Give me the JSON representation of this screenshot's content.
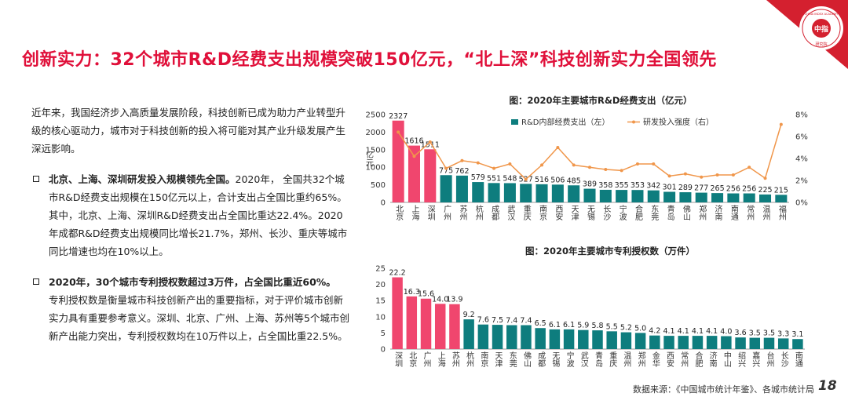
{
  "title": "创新实力：32个城市R&D经费支出规模突破150亿元，“北上深”科技创新实力全国领先",
  "logo": {
    "text_ring": "CHINA INDEX ACADEMY",
    "center": "中指",
    "bottom": "研究院",
    "color": "#d4202f"
  },
  "intro": "近年来，我国经济步入高质量发展阶段，科技创新已成为助力产业转型升级的核心驱动力，城市对于科技创新的投入将可能对其产业升级发展产生深远影响。",
  "bullet1": {
    "lead": "北京、上海、深圳研发投入规模领先全国。",
    "body": "2020年， 全国共32个城市R&D经费支出规模在150亿元以上，合计支出占全国比重约65%。其中，北京、上海、深圳R&D经费支出占全国比重达22.4%。2020年成都R&D经费支出规模同比增长21.7%，郑州、长沙、重庆等城市同比增速也均在10%以上。"
  },
  "bullet2": {
    "lead": "2020年，30个城市专利授权数超过3万件，占全国比重近60%。",
    "body": "专利授权数是衡量城市科技创新产出的重要指标，对于评价城市创新实力具有重要参考意义。深圳、北京、广州、上海、苏州等5个城市创新产出能力突出，专利授权数均在10万件以上，占全国比重22.5%。"
  },
  "footer": {
    "source": "数据来源：《中国城市统计年鉴》、各城市统计局",
    "page": "18"
  },
  "colors": {
    "highlight": "#f0466e",
    "normal": "#0e7d7e",
    "line": "#f0964a"
  },
  "chart_data": [
    {
      "type": "bar",
      "title": "图：2020年主要城市R&D经费支出（亿元）",
      "ylabel": "亿元",
      "ylim": [
        0,
        2500
      ],
      "yticks": [
        "0",
        "500",
        "1000",
        "1500",
        "2000",
        "2500"
      ],
      "y2lim": [
        0,
        8
      ],
      "y2ticks": [
        "0%",
        "2%",
        "4%",
        "6%",
        "8%"
      ],
      "legend": [
        "R&D内部经费支出（左）",
        "研发投入强度（右）"
      ],
      "legend_position": "top",
      "highlight_count": 3,
      "categories": [
        "北京",
        "上海",
        "深圳",
        "广州",
        "苏州",
        "杭州",
        "成都",
        "武汉",
        "重庆",
        "南京",
        "西安",
        "天津",
        "无锡",
        "长沙",
        "宁波",
        "合肥",
        "东莞",
        "青岛",
        "佛山",
        "郑州",
        "济南",
        "南通",
        "常州",
        "温州",
        "福州"
      ],
      "values": [
        2327,
        1616,
        1511,
        775,
        762,
        579,
        551,
        548,
        527,
        516,
        506,
        485,
        389,
        358,
        355,
        353,
        342,
        301,
        289,
        277,
        265,
        256,
        256,
        225,
        215
      ],
      "labels": [
        "2327",
        "1616",
        "1511",
        "775",
        "762",
        "579",
        "551",
        "548",
        "527",
        "516",
        "506",
        "485",
        "389",
        "358",
        "355",
        "353",
        "342",
        "301",
        "289",
        "277",
        "265",
        "256",
        "256",
        "225",
        "215"
      ],
      "intensity": [
        6.4,
        4.2,
        5.5,
        3.1,
        3.8,
        3.6,
        3.1,
        3.5,
        2.1,
        3.4,
        5.0,
        3.4,
        3.2,
        3.0,
        2.9,
        3.5,
        3.5,
        2.4,
        2.6,
        2.3,
        2.5,
        2.5,
        3.2,
        2.2,
        7.1
      ]
    },
    {
      "type": "bar",
      "title": "图：2020年主要城市专利授权数（万件）",
      "ylim": [
        0,
        25
      ],
      "yticks": [
        "0",
        "5",
        "10",
        "15",
        "20",
        "25"
      ],
      "highlight_count": 5,
      "categories": [
        "深圳",
        "北京",
        "广州",
        "上海",
        "苏州",
        "杭州",
        "南京",
        "天津",
        "东莞",
        "佛山",
        "成都",
        "无锡",
        "宁波",
        "武汉",
        "青岛",
        "重庆",
        "温州",
        "郑州",
        "金华",
        "西安",
        "常州",
        "合肥",
        "济南",
        "中山",
        "绍兴",
        "嘉兴",
        "台州",
        "长沙",
        "南通"
      ],
      "values": [
        22.2,
        16.3,
        15.6,
        14.0,
        13.9,
        9.2,
        7.6,
        7.5,
        7.4,
        7.4,
        6.5,
        6.1,
        6.1,
        5.9,
        5.8,
        5.5,
        5.2,
        5.0,
        4.2,
        4.1,
        4.1,
        4.1,
        4.1,
        4.0,
        3.6,
        3.5,
        3.5,
        3.3,
        3.1
      ],
      "labels": [
        "22.2",
        "16.3",
        "15.6",
        "14.0",
        "13.9",
        "9.2",
        "7.6",
        "7.5",
        "7.4",
        "7.4",
        "6.5",
        "6.1",
        "6.1",
        "5.9",
        "5.8",
        "5.5",
        "5.2",
        "5.0",
        "4.2",
        "4.1",
        "4.1",
        "4.1",
        "4.1",
        "4.0",
        "3.6",
        "3.5",
        "3.5",
        "3.3",
        "3.1"
      ]
    }
  ]
}
